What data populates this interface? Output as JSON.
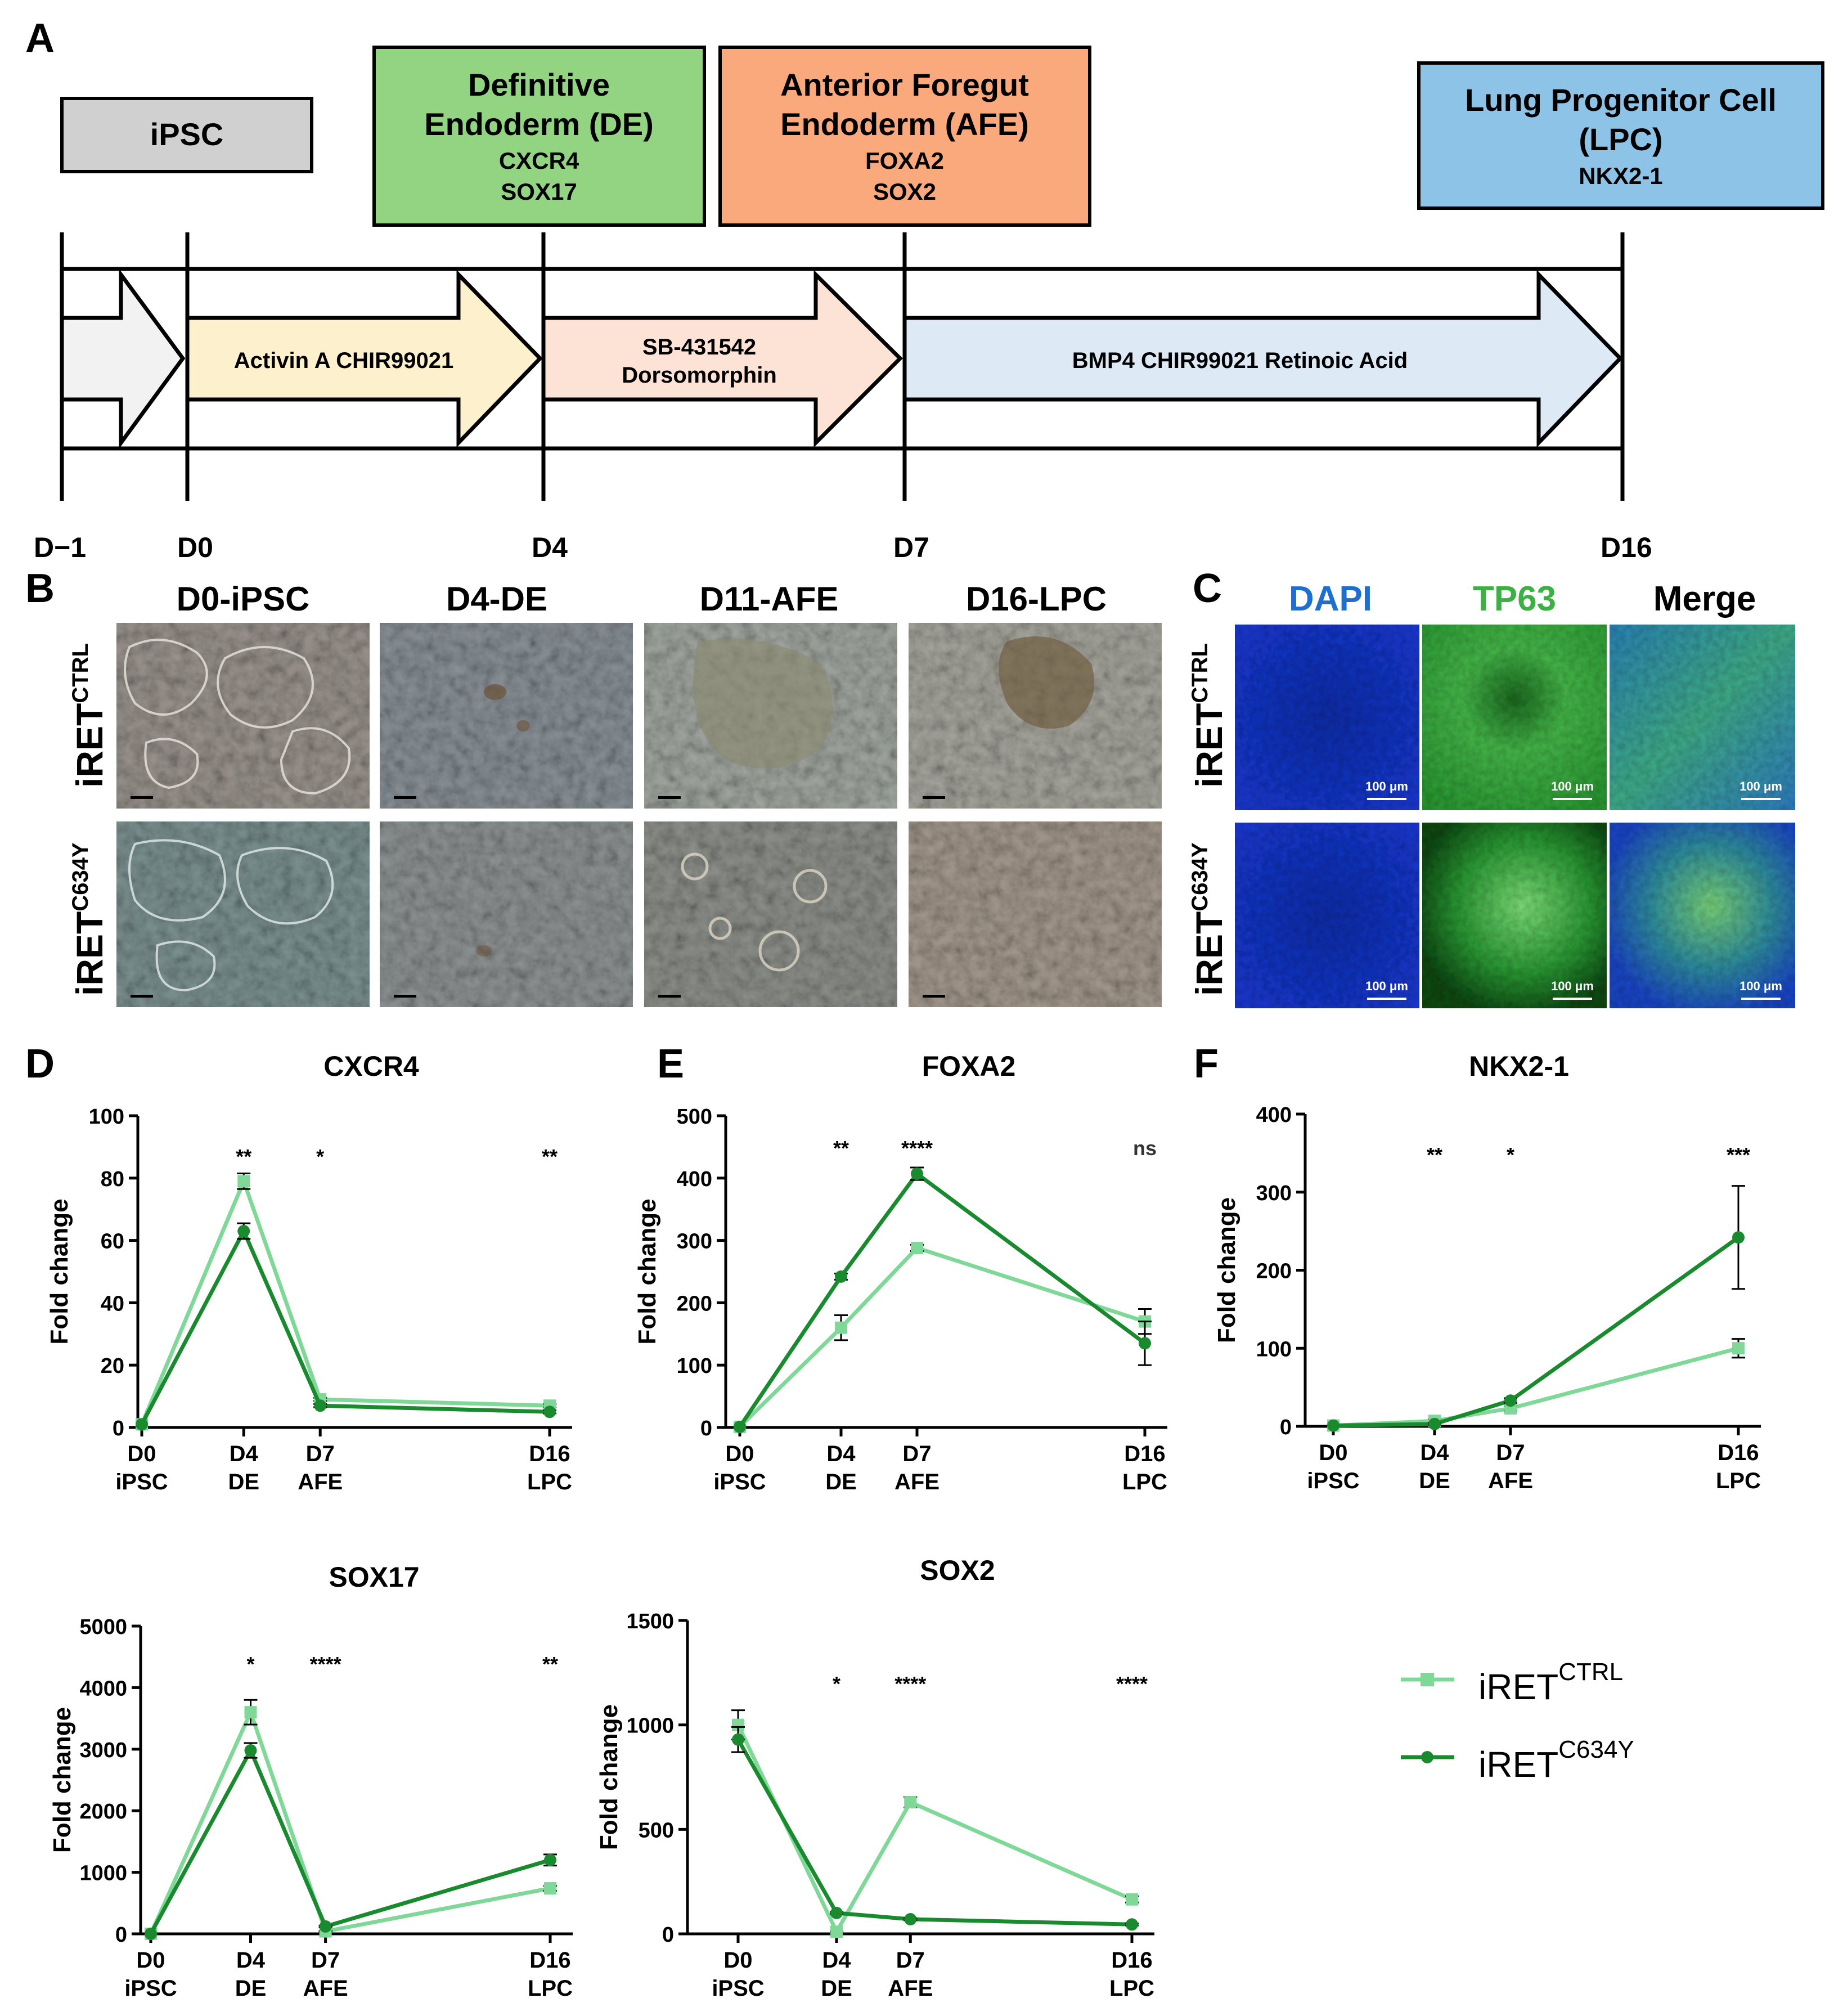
{
  "panel_labels": [
    "A",
    "B",
    "C",
    "D",
    "E",
    "F"
  ],
  "panel_a": {
    "stages": [
      {
        "id": "ipsc",
        "title_lines": [
          "iPSC"
        ],
        "markers": [],
        "fill": "#d0d0d0"
      },
      {
        "id": "de",
        "title_lines": [
          "Definitive",
          "Endoderm (DE)"
        ],
        "markers": [
          "CXCR4",
          "SOX17"
        ],
        "fill": "#92d481"
      },
      {
        "id": "afe",
        "title_lines": [
          "Anterior Foregut",
          "Endoderm (AFE)"
        ],
        "markers": [
          "FOXA2",
          "SOX2"
        ],
        "fill": "#f9a97c"
      },
      {
        "id": "lpc",
        "title_lines": [
          "Lung Progenitor Cell",
          "(LPC)"
        ],
        "markers": [
          "NKX2-1"
        ],
        "fill": "#8dc3e6"
      }
    ],
    "arrows": [
      {
        "lines": [],
        "fill": "#f2f2f2"
      },
      {
        "lines": [
          "Activin A CHIR99021"
        ],
        "fill": "#fdf0cc"
      },
      {
        "lines": [
          "SB-431542",
          "Dorsomorphin"
        ],
        "fill": "#fde2d6"
      },
      {
        "lines": [
          "BMP4 CHIR99021 Retinoic Acid"
        ],
        "fill": "#ddeaf6"
      }
    ],
    "days": [
      "D−1",
      "D0",
      "D4",
      "D7",
      "D16"
    ]
  },
  "panel_b": {
    "columns": [
      "D0-iPSC",
      "D4-DE",
      "D11-AFE",
      "D16-LPC"
    ],
    "rows": [
      {
        "base": "iRET",
        "sup": "CTRL"
      },
      {
        "base": "iRET",
        "sup": "C634Y"
      }
    ]
  },
  "panel_c": {
    "columns": [
      {
        "label": "DAPI",
        "color": "#1f6fd1"
      },
      {
        "label": "TP63",
        "color": "#3cb043"
      },
      {
        "label": "Merge",
        "color": "#000000"
      }
    ],
    "scale_bar": "100 μm"
  },
  "legend": [
    {
      "base": "iRET",
      "sup": "CTRL",
      "color": "#7fd897",
      "marker": "square"
    },
    {
      "base": "iRET",
      "sup": "C634Y",
      "color": "#1a8a2e",
      "marker": "circle"
    }
  ],
  "chart_data": [
    {
      "type": "line",
      "title": "CXCR4",
      "ylabel": "Fold change",
      "ylim": [
        0,
        100
      ],
      "yticks": [
        0,
        20,
        40,
        60,
        80,
        100
      ],
      "x": [
        0,
        4,
        7,
        16
      ],
      "xticks": [
        [
          "D0",
          "iPSC"
        ],
        [
          "D4",
          "DE"
        ],
        [
          "D7",
          "AFE"
        ],
        [
          "D16",
          "LPC"
        ]
      ],
      "series": [
        {
          "name": "iRET CTRL",
          "values": [
            1,
            79,
            9,
            7
          ],
          "err": [
            0,
            2.5,
            0.5,
            0.5
          ]
        },
        {
          "name": "iRET C634Y",
          "values": [
            1,
            63,
            7,
            5
          ],
          "err": [
            0,
            2.5,
            0.5,
            0.5
          ]
        }
      ],
      "significance": [
        {
          "x": 4,
          "label": "**"
        },
        {
          "x": 7,
          "label": "*"
        },
        {
          "x": 16,
          "label": "**"
        }
      ]
    },
    {
      "type": "line",
      "title": "FOXA2",
      "ylabel": "Fold change",
      "ylim": [
        0,
        500
      ],
      "yticks": [
        0,
        100,
        200,
        300,
        400,
        500
      ],
      "x": [
        0,
        4,
        7,
        16
      ],
      "xticks": [
        [
          "D0",
          "iPSC"
        ],
        [
          "D4",
          "DE"
        ],
        [
          "D7",
          "AFE"
        ],
        [
          "D16",
          "LPC"
        ]
      ],
      "series": [
        {
          "name": "iRET CTRL",
          "values": [
            1,
            160,
            288,
            170
          ],
          "err": [
            0,
            20,
            5,
            20
          ]
        },
        {
          "name": "iRET C634Y",
          "values": [
            1,
            242,
            407,
            135
          ],
          "err": [
            0,
            5,
            10,
            35
          ]
        }
      ],
      "significance": [
        {
          "x": 4,
          "label": "**"
        },
        {
          "x": 7,
          "label": "****"
        },
        {
          "x": 16,
          "label": "ns"
        }
      ]
    },
    {
      "type": "line",
      "title": "NKX2-1",
      "ylabel": "Fold change",
      "ylim": [
        0,
        400
      ],
      "yticks": [
        0,
        100,
        200,
        300,
        400
      ],
      "x": [
        0,
        4,
        7,
        16
      ],
      "xticks": [
        [
          "D0",
          "iPSC"
        ],
        [
          "D4",
          "DE"
        ],
        [
          "D7",
          "AFE"
        ],
        [
          "D16",
          "LPC"
        ]
      ],
      "series": [
        {
          "name": "iRET CTRL",
          "values": [
            1,
            7,
            23,
            100
          ],
          "err": [
            0,
            2,
            3,
            12
          ]
        },
        {
          "name": "iRET C634Y",
          "values": [
            1,
            3,
            33,
            242
          ],
          "err": [
            0,
            1,
            3,
            66
          ]
        }
      ],
      "significance": [
        {
          "x": 4,
          "label": "**"
        },
        {
          "x": 7,
          "label": "*"
        },
        {
          "x": 16,
          "label": "***"
        }
      ]
    },
    {
      "type": "line",
      "title": "SOX17",
      "ylabel": "Fold change",
      "ylim": [
        0,
        5000
      ],
      "yticks": [
        0,
        1000,
        2000,
        3000,
        4000,
        5000
      ],
      "x": [
        0,
        4,
        7,
        16
      ],
      "xticks": [
        [
          "D0",
          "iPSC"
        ],
        [
          "D4",
          "DE"
        ],
        [
          "D7",
          "AFE"
        ],
        [
          "D16",
          "LPC"
        ]
      ],
      "series": [
        {
          "name": "iRET CTRL",
          "values": [
            1,
            3600,
            40,
            740
          ],
          "err": [
            0,
            200,
            10,
            40
          ]
        },
        {
          "name": "iRET C634Y",
          "values": [
            1,
            2980,
            120,
            1200
          ],
          "err": [
            0,
            120,
            15,
            90
          ]
        }
      ],
      "significance": [
        {
          "x": 4,
          "label": "*"
        },
        {
          "x": 7,
          "label": "****"
        },
        {
          "x": 16,
          "label": "**"
        }
      ]
    },
    {
      "type": "line",
      "title": "SOX2",
      "ylabel": "Fold change",
      "ylim": [
        0,
        1500
      ],
      "yticks": [
        0,
        500,
        1000,
        1500
      ],
      "x": [
        0,
        4,
        7,
        16
      ],
      "xticks": [
        [
          "D0",
          "iPSC"
        ],
        [
          "D4",
          "DE"
        ],
        [
          "D7",
          "AFE"
        ],
        [
          "D16",
          "LPC"
        ]
      ],
      "series": [
        {
          "name": "iRET CTRL",
          "values": [
            1000,
            10,
            630,
            165
          ],
          "err": [
            70,
            2,
            25,
            15
          ]
        },
        {
          "name": "iRET C634Y",
          "values": [
            930,
            100,
            70,
            45
          ],
          "err": [
            60,
            5,
            5,
            5
          ]
        }
      ],
      "significance": [
        {
          "x": 4,
          "label": "*"
        },
        {
          "x": 7,
          "label": "****"
        },
        {
          "x": 16,
          "label": "****"
        }
      ]
    }
  ]
}
